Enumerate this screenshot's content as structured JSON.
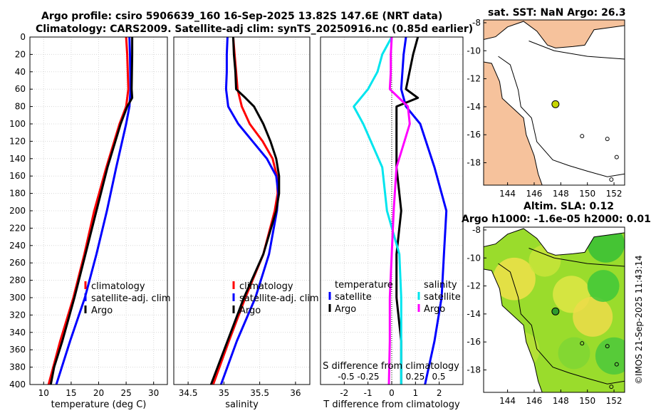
{
  "title_line1": "Argo profile: csiro 5906639_160 16-Sep-2025 13.82S 147.6E (NRT data)",
  "title_line2": "Climatology: CARS2009. Satellite-adj clim: synTS_20250916.nc (0.85d earlier)",
  "colors": {
    "climatology": "#ff0000",
    "satellite": "#0000ff",
    "argo": "#000000",
    "salinity_argo": "#000000",
    "salinity_satellite": "#00e5ee",
    "salinity_climatology": "#ff00ff",
    "land": "#f6c29c",
    "grid": "#d8d8d8"
  },
  "chart_data": [
    {
      "type": "line",
      "title": "",
      "xlabel": "temperature (deg C)",
      "ylabel": "",
      "xlim": [
        7.5,
        32.5
      ],
      "ylim": [
        400,
        0
      ],
      "xticks": [
        10,
        15,
        20,
        25,
        30
      ],
      "yticks": [
        0,
        20,
        40,
        60,
        80,
        100,
        120,
        140,
        160,
        180,
        200,
        220,
        240,
        260,
        280,
        300,
        320,
        340,
        360,
        380,
        400
      ],
      "legend": [
        "climatology",
        "satellite-adj. clim",
        "Argo"
      ],
      "legend_position": "lower-right",
      "series": [
        {
          "name": "climatology",
          "color": "climatology",
          "y": [
            0,
            20,
            60,
            80,
            100,
            150,
            200,
            250,
            300,
            350,
            400
          ],
          "x": [
            25.0,
            25.2,
            25.4,
            25.0,
            23.8,
            21.4,
            19.2,
            17.4,
            15.4,
            13.0,
            10.9
          ]
        },
        {
          "name": "satellite-adj. clim",
          "color": "satellite",
          "y": [
            0,
            20,
            60,
            80,
            100,
            150,
            200,
            250,
            300,
            350,
            400
          ],
          "x": [
            25.6,
            25.7,
            25.8,
            25.6,
            25.0,
            23.2,
            21.5,
            19.6,
            17.5,
            14.8,
            12.3
          ]
        },
        {
          "name": "Argo",
          "color": "argo",
          "y": [
            0,
            20,
            60,
            70,
            80,
            100,
            150,
            200,
            250,
            300,
            350,
            380,
            400
          ],
          "x": [
            26.1,
            26.1,
            26.0,
            26.1,
            25.2,
            24.0,
            21.6,
            19.6,
            17.6,
            15.6,
            13.4,
            11.9,
            11.3
          ]
        }
      ]
    },
    {
      "type": "line",
      "title": "",
      "xlabel": "salinity",
      "ylabel": "",
      "xlim": [
        34.3,
        36.2
      ],
      "ylim": [
        400,
        0
      ],
      "xticks": [
        34.5,
        35,
        35.5,
        36
      ],
      "xtick_labels": [
        "34.5",
        "35",
        "35.5",
        "36"
      ],
      "legend": [
        "climatology",
        "satellite-adj. clim",
        "Argo"
      ],
      "legend_position": "lower-right",
      "series": [
        {
          "name": "climatology",
          "color": "climatology",
          "y": [
            0,
            20,
            40,
            60,
            80,
            100,
            120,
            140,
            160,
            180,
            200,
            250,
            300,
            350,
            400
          ],
          "x": [
            35.13,
            35.15,
            35.17,
            35.19,
            35.25,
            35.36,
            35.54,
            35.68,
            35.74,
            35.75,
            35.71,
            35.55,
            35.3,
            35.07,
            34.85
          ]
        },
        {
          "name": "satellite-adj. clim",
          "color": "satellite",
          "y": [
            0,
            20,
            40,
            60,
            80,
            100,
            120,
            140,
            160,
            180,
            200,
            250,
            300,
            350,
            400
          ],
          "x": [
            35.05,
            35.04,
            35.04,
            35.03,
            35.06,
            35.2,
            35.4,
            35.6,
            35.73,
            35.76,
            35.74,
            35.63,
            35.44,
            35.18,
            34.96
          ]
        },
        {
          "name": "Argo",
          "color": "argo",
          "y": [
            0,
            20,
            40,
            60,
            70,
            80,
            100,
            120,
            140,
            160,
            180,
            200,
            250,
            300,
            350,
            400
          ],
          "x": [
            35.13,
            35.14,
            35.16,
            35.17,
            35.3,
            35.42,
            35.55,
            35.65,
            35.73,
            35.77,
            35.77,
            35.73,
            35.55,
            35.28,
            35.05,
            34.82
          ]
        }
      ]
    },
    {
      "type": "line",
      "title": "",
      "xlabel": "T difference from climatology",
      "xlabel_top": "S difference from climatology",
      "xlim": [
        -3,
        3
      ],
      "ylim": [
        400,
        0
      ],
      "xticks": [
        -2,
        -1,
        0,
        1,
        2
      ],
      "top_xticks": [
        "-0.5",
        "-0.25",
        "0",
        "0.25",
        "0.5"
      ],
      "legend_left": {
        "title": "temperature",
        "items": [
          "satellite",
          "Argo"
        ]
      },
      "legend_right": {
        "title": "salinity",
        "items": [
          "satellite",
          "Argo"
        ]
      },
      "series": [
        {
          "name": "temperature satellite",
          "color": "satellite",
          "y": [
            0,
            20,
            60,
            80,
            100,
            150,
            200,
            250,
            300,
            350,
            400
          ],
          "x": [
            0.6,
            0.5,
            0.4,
            0.6,
            1.2,
            1.8,
            2.3,
            2.2,
            2.1,
            1.8,
            1.4
          ]
        },
        {
          "name": "temperature Argo",
          "color": "argo",
          "y": [
            0,
            20,
            60,
            70,
            80,
            100,
            150,
            200,
            250,
            300,
            350,
            400
          ],
          "x": [
            1.1,
            0.9,
            0.6,
            1.1,
            0.2,
            0.2,
            0.2,
            0.4,
            0.2,
            0.2,
            0.4,
            0.4
          ]
        },
        {
          "name": "salinity satellite",
          "color": "salinity_satellite",
          "y": [
            0,
            20,
            40,
            60,
            80,
            100,
            150,
            200,
            250,
            300,
            350,
            400
          ],
          "x": [
            0,
            -0.1,
            -0.15,
            -0.25,
            -0.4,
            -0.3,
            -0.1,
            -0.05,
            0.08,
            0.1,
            0.1,
            0.1
          ]
        },
        {
          "name": "salinity Argo",
          "color": "salinity_climatology",
          "y": [
            0,
            20,
            40,
            60,
            80,
            100,
            150,
            200,
            250,
            300,
            350,
            400
          ],
          "x": [
            0,
            -0.01,
            -0.01,
            -0.02,
            0.17,
            0.19,
            0.05,
            0.02,
            0.0,
            -0.02,
            -0.02,
            -0.03
          ]
        }
      ]
    }
  ],
  "maps": {
    "sst": {
      "title": "sat. SST: NaN Argo: 26.3",
      "lon_ticks": [
        "144",
        "146",
        "148",
        "150",
        "152"
      ],
      "lat_ticks": [
        "-8",
        "-10",
        "-12",
        "-14",
        "-16",
        "-18"
      ],
      "marker_color": "#c8d600"
    },
    "sla": {
      "title_line1": "Altim. SLA: 0.12",
      "title_line2": "Argo h1000: -1.6e-05 h2000: 0.01",
      "lon_ticks": [
        "144",
        "146",
        "148",
        "150",
        "152"
      ],
      "lat_ticks": [
        "-8",
        "-10",
        "-12",
        "-14",
        "-16",
        "-18"
      ],
      "marker_color": "#2e9a2e"
    }
  },
  "credit": "©IMOS 21-Sep-2025 11:43:14"
}
